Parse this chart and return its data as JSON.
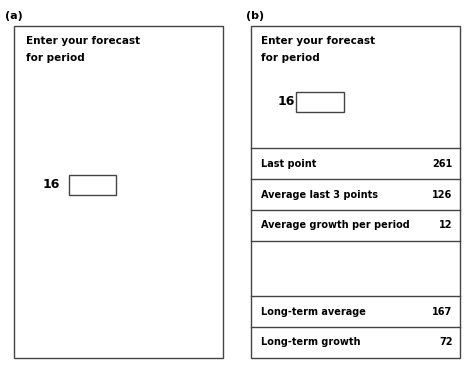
{
  "panel_a_label": "(a)",
  "panel_b_label": "(b)",
  "header_text_line1": "Enter your forecast",
  "header_text_line2": "for period",
  "period_number": "16",
  "bg_color": "#ffffff",
  "border_color": "#444444",
  "text_color": "#000000",
  "rows": [
    {
      "label": "Last point",
      "value": "261"
    },
    {
      "label": "Average last 3 points",
      "value": "126"
    },
    {
      "label": "Average growth per period",
      "value": "12"
    },
    {
      "label": "",
      "value": ""
    },
    {
      "label": "Long-term average",
      "value": "167"
    },
    {
      "label": "Long-term growth",
      "value": "72"
    }
  ],
  "row_rel_heights": [
    1,
    1,
    1,
    1.8,
    1,
    1
  ],
  "figsize": [
    4.74,
    3.65
  ],
  "dpi": 100
}
